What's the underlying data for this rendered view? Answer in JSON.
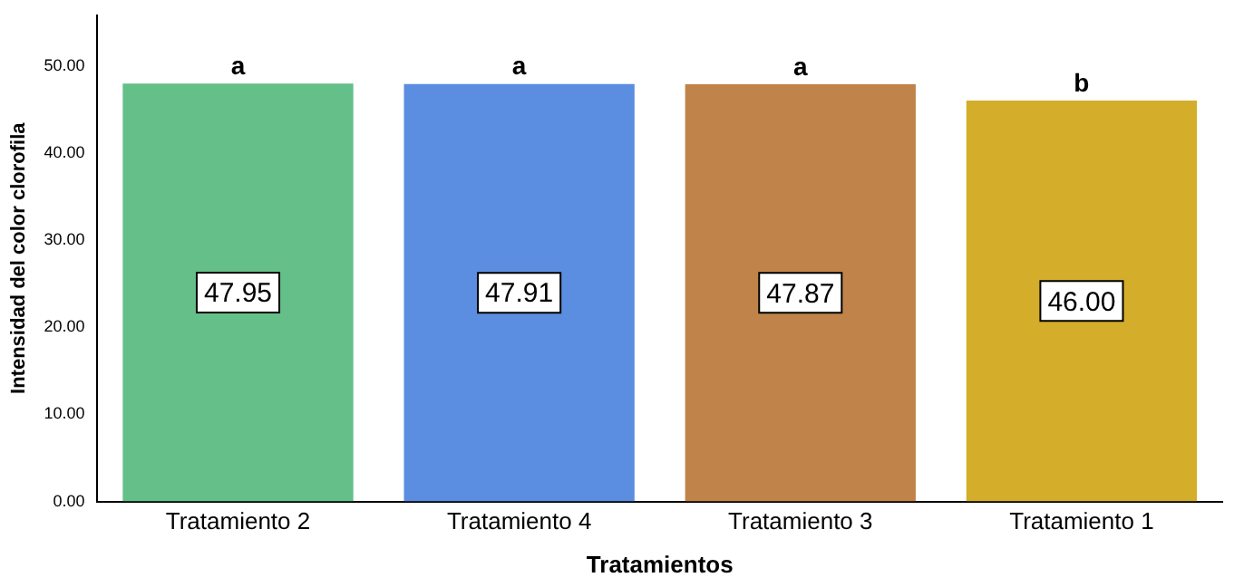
{
  "chart_data": {
    "type": "bar",
    "xlabel": "Tratamientos",
    "ylabel": "Intensidad del color clorofila",
    "categories": [
      "Tratamiento 2",
      "Tratamiento 4",
      "Tratamiento 3",
      "Tratamiento 1"
    ],
    "values": [
      47.95,
      47.91,
      47.87,
      46.0
    ],
    "value_labels": [
      "47.95",
      "47.91",
      "47.87",
      "46.00"
    ],
    "colors": [
      "#64bf89",
      "#5b8ee0",
      "#c0844a",
      "#d4ad2a"
    ],
    "ylim": [
      0,
      55.8
    ],
    "yticks": [
      {
        "value": 0,
        "label": "0.00"
      },
      {
        "value": 10,
        "label": "10.00"
      },
      {
        "value": 20,
        "label": "20.00"
      },
      {
        "value": 30,
        "label": "30.00"
      },
      {
        "value": 40,
        "label": "40.00"
      },
      {
        "value": 50,
        "label": "50.00"
      }
    ],
    "grid": false,
    "legend": false,
    "annotations": [
      {
        "text": "a",
        "x": "Tratamiento 2",
        "y": 47.95
      },
      {
        "text": "a",
        "x": "Tratamiento 4",
        "y": 47.91
      },
      {
        "text": "a",
        "x": "Tratamiento 3",
        "y": 47.87
      },
      {
        "text": "b",
        "x": "Tratamiento 1",
        "y": 46.0
      }
    ]
  }
}
